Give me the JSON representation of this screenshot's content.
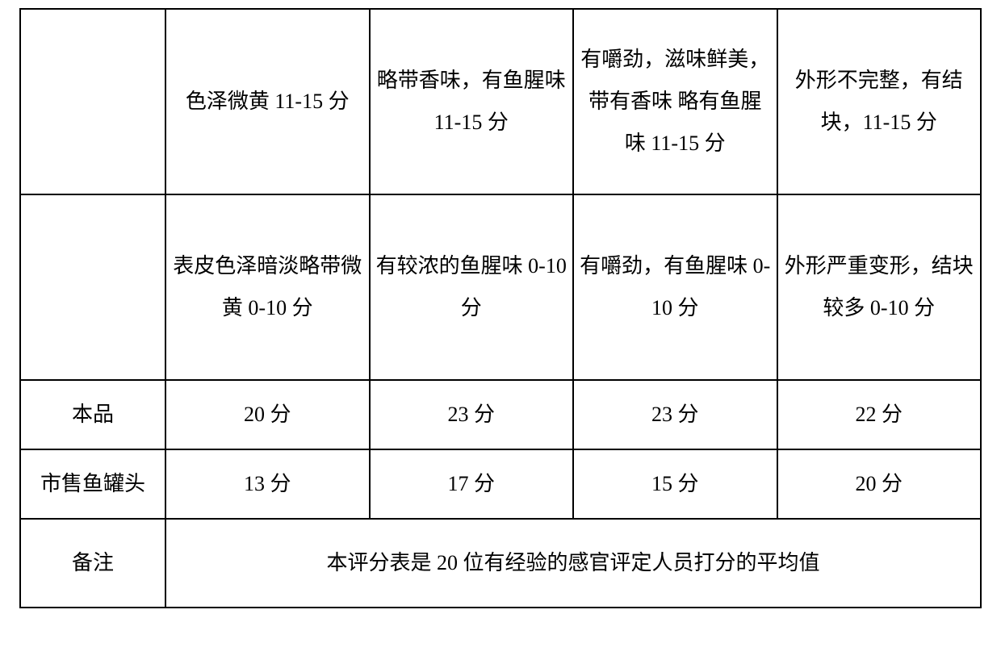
{
  "table": {
    "col_widths_pct": [
      15,
      21.5,
      21,
      21.5,
      21
    ],
    "level_rows": [
      {
        "cells": [
          "",
          "色泽微黄 11-15 分",
          "略带香味，有鱼腥味 11-15 分",
          "有嚼劲，滋味鲜美，带有香味   略有鱼腥味 11-15 分",
          "外形不完整，有结块，11-15 分"
        ]
      },
      {
        "cells": [
          "",
          "表皮色泽暗淡略带微黄 0-10 分",
          "有较浓的鱼腥味 0-10 分",
          "有嚼劲，有鱼腥味 0-10 分",
          "外形严重变形，结块较多  0-10 分"
        ]
      }
    ],
    "score_rows": [
      {
        "label": "本品",
        "scores": [
          "20 分",
          "23 分",
          "23 分",
          "22 分"
        ]
      },
      {
        "label": "市售鱼罐头",
        "scores": [
          "13 分",
          "17 分",
          "15 分",
          "20 分"
        ]
      }
    ],
    "note": {
      "label": "备注",
      "text": "本评分表是 20 位有经验的感官评定人员打分的平均值"
    }
  }
}
